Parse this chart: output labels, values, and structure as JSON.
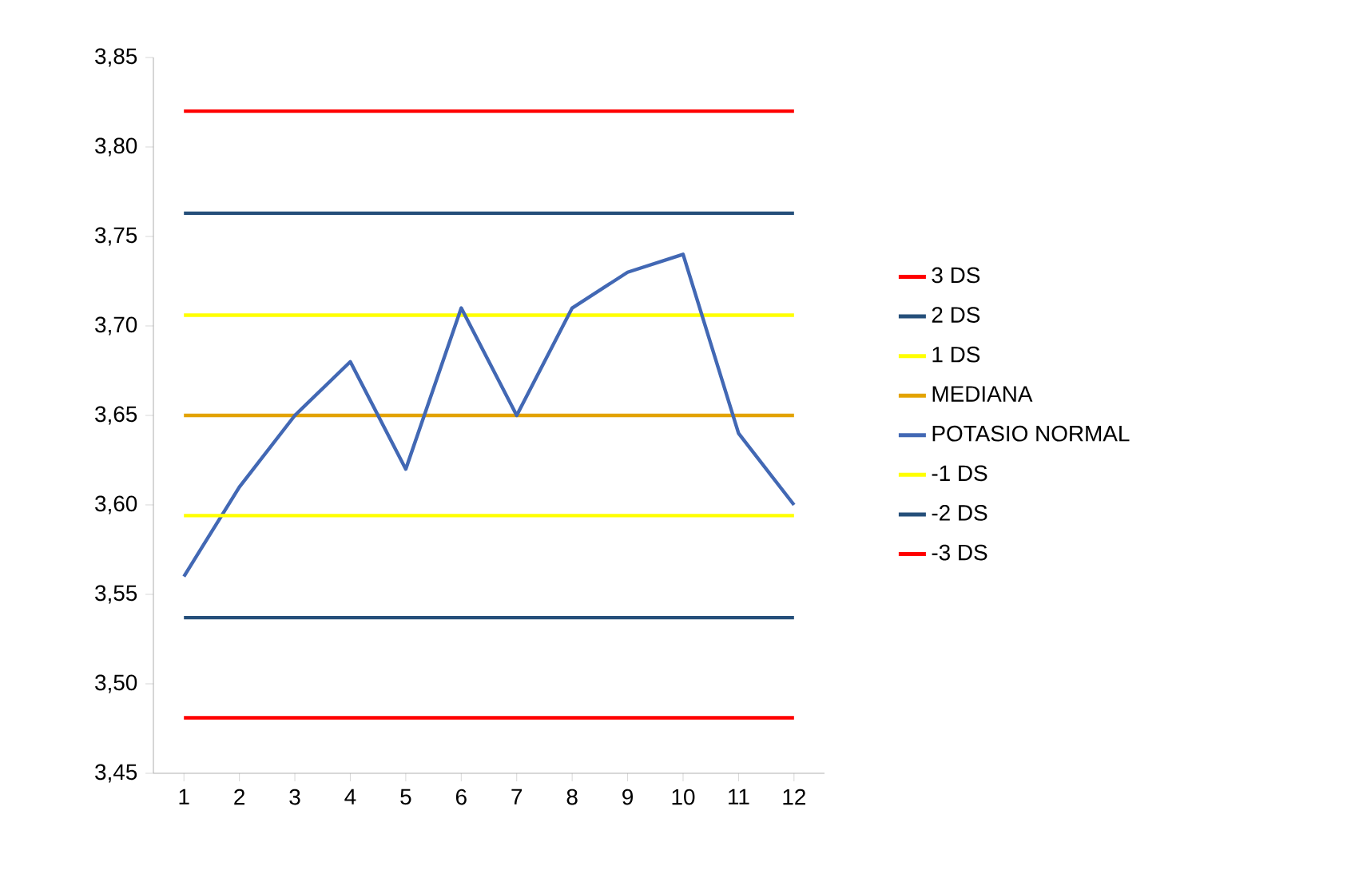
{
  "chart_data": {
    "type": "line",
    "categories": [
      "1",
      "2",
      "3",
      "4",
      "5",
      "6",
      "7",
      "8",
      "9",
      "10",
      "11",
      "12"
    ],
    "series": [
      {
        "name": "3 DS",
        "color": "#ff0000",
        "values": [
          3.82,
          3.82,
          3.82,
          3.82,
          3.82,
          3.82,
          3.82,
          3.82,
          3.82,
          3.82,
          3.82,
          3.82
        ]
      },
      {
        "name": "2 DS",
        "color": "#254f7a",
        "values": [
          3.763,
          3.763,
          3.763,
          3.763,
          3.763,
          3.763,
          3.763,
          3.763,
          3.763,
          3.763,
          3.763,
          3.763
        ]
      },
      {
        "name": "1 DS",
        "color": "#ffff00",
        "values": [
          3.706,
          3.706,
          3.706,
          3.706,
          3.706,
          3.706,
          3.706,
          3.706,
          3.706,
          3.706,
          3.706,
          3.706
        ]
      },
      {
        "name": "MEDIANA",
        "color": "#e3a300",
        "values": [
          3.65,
          3.65,
          3.65,
          3.65,
          3.65,
          3.65,
          3.65,
          3.65,
          3.65,
          3.65,
          3.65,
          3.65
        ]
      },
      {
        "name": "POTASIO NORMAL",
        "color": "#4268b4",
        "values": [
          3.56,
          3.61,
          3.65,
          3.68,
          3.62,
          3.71,
          3.65,
          3.71,
          3.73,
          3.74,
          3.64,
          3.6
        ]
      },
      {
        "name": "-1 DS",
        "color": "#ffff00",
        "values": [
          3.594,
          3.594,
          3.594,
          3.594,
          3.594,
          3.594,
          3.594,
          3.594,
          3.594,
          3.594,
          3.594,
          3.594
        ]
      },
      {
        "name": "-2 DS",
        "color": "#254f7a",
        "values": [
          3.537,
          3.537,
          3.537,
          3.537,
          3.537,
          3.537,
          3.537,
          3.537,
          3.537,
          3.537,
          3.537,
          3.537
        ]
      },
      {
        "name": "-3 DS",
        "color": "#ff0000",
        "values": [
          3.481,
          3.481,
          3.481,
          3.481,
          3.481,
          3.481,
          3.481,
          3.481,
          3.481,
          3.481,
          3.481,
          3.481
        ]
      }
    ],
    "ylim": [
      3.45,
      3.85
    ],
    "yticks": [
      {
        "value": 3.45,
        "label": "3,45"
      },
      {
        "value": 3.5,
        "label": "3,50"
      },
      {
        "value": 3.55,
        "label": "3,55"
      },
      {
        "value": 3.6,
        "label": "3,60"
      },
      {
        "value": 3.65,
        "label": "3,65"
      },
      {
        "value": 3.7,
        "label": "3,70"
      },
      {
        "value": 3.75,
        "label": "3,75"
      },
      {
        "value": 3.8,
        "label": "3,80"
      },
      {
        "value": 3.85,
        "label": "3,85"
      }
    ],
    "grid": false,
    "legend": "right",
    "marker": "none",
    "line_style": "solid"
  }
}
